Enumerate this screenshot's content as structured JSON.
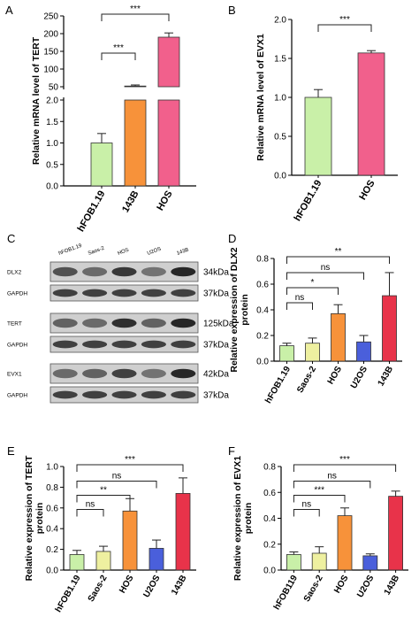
{
  "chart_data": [
    {
      "id": "A",
      "panel_letter": "A",
      "type": "bar",
      "categories": [
        "hFOB1.19",
        "143B",
        "HOS"
      ],
      "values": [
        1.0,
        52,
        190
      ],
      "errors": [
        0.22,
        3,
        12
      ],
      "colors": [
        "#c9f0a8",
        "#f7923a",
        "#f1608c"
      ],
      "ylabel": "Relative mRNA  level of TERT",
      "axis_break": true,
      "ylim_lower": [
        0,
        2.0
      ],
      "yticks_lower": [
        "0.0",
        "0.5",
        "1.0",
        "1.5",
        "2.0"
      ],
      "ylim_upper": [
        50,
        250
      ],
      "yticks_upper": [
        "50",
        "100",
        "150",
        "200",
        "250"
      ],
      "significance": [
        {
          "from": 0,
          "to": 1,
          "label": "***"
        },
        {
          "from": 0,
          "to": 2,
          "label": "***"
        }
      ]
    },
    {
      "id": "B",
      "panel_letter": "B",
      "type": "bar",
      "categories": [
        "hFOB1.19",
        "HOS"
      ],
      "values": [
        1.0,
        1.57
      ],
      "errors": [
        0.1,
        0.03
      ],
      "colors": [
        "#c9f0a8",
        "#f1608c"
      ],
      "ylabel": "Relative mRNA  level of EVX1",
      "ylim": [
        0,
        2.0
      ],
      "yticks": [
        "0.0",
        "0.5",
        "1.0",
        "1.5",
        "2.0"
      ],
      "significance": [
        {
          "from": 0,
          "to": 1,
          "label": "***"
        }
      ]
    },
    {
      "id": "D",
      "panel_letter": "D",
      "type": "bar",
      "categories": [
        "hFOB1.19",
        "Saos-2",
        "HOS",
        "U2OS",
        "143B"
      ],
      "values": [
        0.12,
        0.14,
        0.37,
        0.15,
        0.51
      ],
      "errors": [
        0.02,
        0.04,
        0.07,
        0.05,
        0.18
      ],
      "colors": [
        "#c9f0a8",
        "#eef0a0",
        "#f7923a",
        "#4a5fdb",
        "#e8334a"
      ],
      "ylabel": "Relative expression of DLX2 protein",
      "ylim": [
        0,
        0.8
      ],
      "yticks": [
        "0.0",
        "0.2",
        "0.4",
        "0.6",
        "0.8"
      ],
      "significance": [
        {
          "from": 0,
          "to": 1,
          "label": "ns"
        },
        {
          "from": 0,
          "to": 2,
          "label": "*"
        },
        {
          "from": 0,
          "to": 3,
          "label": "ns"
        },
        {
          "from": 0,
          "to": 4,
          "label": "**"
        }
      ]
    },
    {
      "id": "E",
      "panel_letter": "E",
      "type": "bar",
      "categories": [
        "hFOB1.19",
        "Saos-2",
        "HOS",
        "U2OS",
        "143B"
      ],
      "values": [
        0.15,
        0.18,
        0.57,
        0.21,
        0.74
      ],
      "errors": [
        0.04,
        0.05,
        0.12,
        0.08,
        0.15
      ],
      "colors": [
        "#c9f0a8",
        "#eef0a0",
        "#f7923a",
        "#4a5fdb",
        "#e8334a"
      ],
      "ylabel": "Relative expression of TERT protein",
      "ylim": [
        0,
        1.0
      ],
      "yticks": [
        "0.0",
        "0.2",
        "0.4",
        "0.6",
        "0.8",
        "1.0"
      ],
      "significance": [
        {
          "from": 0,
          "to": 1,
          "label": "ns"
        },
        {
          "from": 0,
          "to": 2,
          "label": "**"
        },
        {
          "from": 0,
          "to": 3,
          "label": "ns"
        },
        {
          "from": 0,
          "to": 4,
          "label": "***"
        }
      ]
    },
    {
      "id": "F",
      "panel_letter": "F",
      "type": "bar",
      "categories": [
        "hFOB119",
        "Saos-2",
        "HOS",
        "U2OS",
        "143B"
      ],
      "values": [
        0.12,
        0.13,
        0.42,
        0.11,
        0.57
      ],
      "errors": [
        0.02,
        0.05,
        0.06,
        0.015,
        0.04
      ],
      "colors": [
        "#c9f0a8",
        "#eef0a0",
        "#f7923a",
        "#4a5fdb",
        "#e8334a"
      ],
      "ylabel": "Relative expression of EVX1 protein",
      "ylim": [
        0,
        0.8
      ],
      "yticks": [
        "0.0",
        "0.2",
        "0.4",
        "0.6",
        "0.8"
      ],
      "significance": [
        {
          "from": 0,
          "to": 1,
          "label": "ns"
        },
        {
          "from": 0,
          "to": 2,
          "label": "***"
        },
        {
          "from": 0,
          "to": 3,
          "label": "ns"
        },
        {
          "from": 0,
          "to": 4,
          "label": "***"
        }
      ]
    }
  ],
  "western_blot": {
    "panel_letter": "C",
    "lanes": [
      "hFOB1.19",
      "Saos-2",
      "HOS",
      "U2OS",
      "143B"
    ],
    "rows": [
      {
        "protein": "DLX2",
        "size": "34kDa",
        "intensity": [
          0.7,
          0.55,
          0.85,
          0.5,
          0.95
        ]
      },
      {
        "protein": "GAPDH",
        "size": "37kDa",
        "intensity": [
          0.8,
          0.8,
          0.8,
          0.8,
          0.8
        ]
      },
      {
        "protein": "TERT",
        "size": "125kDa",
        "intensity": [
          0.6,
          0.55,
          0.9,
          0.6,
          0.95
        ]
      },
      {
        "protein": "GAPDH",
        "size": "37kDa",
        "intensity": [
          0.8,
          0.8,
          0.8,
          0.8,
          0.8
        ]
      },
      {
        "protein": "EVX1",
        "size": "42kDa",
        "intensity": [
          0.55,
          0.6,
          0.8,
          0.5,
          0.95
        ]
      },
      {
        "protein": "GAPDH",
        "size": "37kDa",
        "intensity": [
          0.8,
          0.8,
          0.8,
          0.8,
          0.8
        ]
      }
    ]
  }
}
